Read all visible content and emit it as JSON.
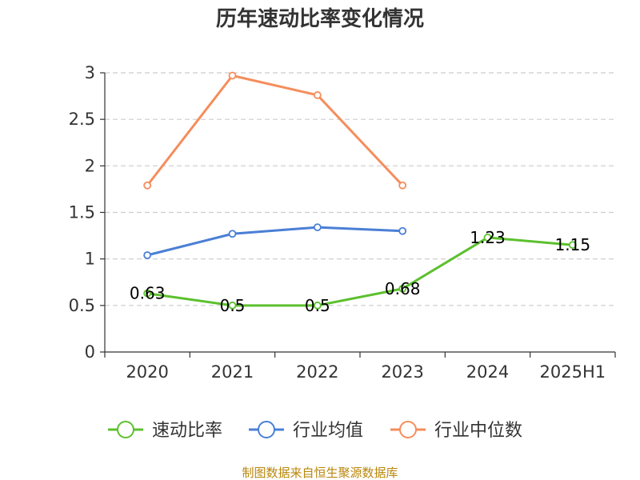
{
  "chart_data": {
    "type": "line",
    "title": "历年速动比率变化情况",
    "categories": [
      "2020",
      "2021",
      "2022",
      "2023",
      "2024",
      "2025H1"
    ],
    "yticks": [
      "0",
      "0.5",
      "1",
      "1.5",
      "2",
      "2.5",
      "3"
    ],
    "ylim": [
      0,
      3
    ],
    "grid": true,
    "legend_position": "bottom",
    "series": [
      {
        "name": "速动比率",
        "color": "#5cc02e",
        "values": [
          0.63,
          0.5,
          0.5,
          0.68,
          1.23,
          1.15
        ],
        "labels": [
          "0.63",
          "0.5",
          "0.5",
          "0.68",
          "1.23",
          "1.15"
        ]
      },
      {
        "name": "行业均值",
        "color": "#4a7fd6",
        "values": [
          1.04,
          1.27,
          1.34,
          1.3,
          null,
          null
        ]
      },
      {
        "name": "行业中位数",
        "color": "#f58d5b",
        "values": [
          1.79,
          2.97,
          2.76,
          1.79,
          null,
          null
        ]
      }
    ]
  },
  "source_text": "制图数据来自恒生聚源数据库"
}
